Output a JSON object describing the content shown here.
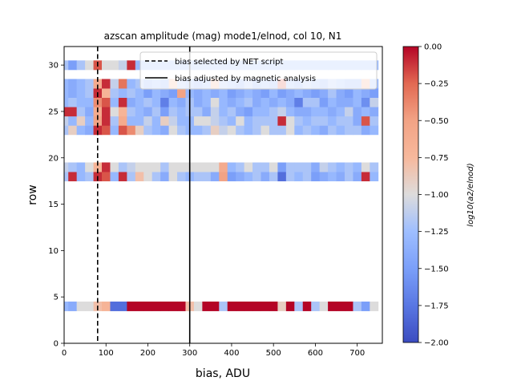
{
  "chart_data": {
    "type": "heatmap",
    "title": "azscan amplitude (mag) mode1/elnod, col 10, N1",
    "xlabel": "bias, ADU",
    "ylabel": "row",
    "xlim": [
      0,
      760
    ],
    "ylim": [
      0,
      32
    ],
    "x_ticks": [
      "0",
      "100",
      "200",
      "300",
      "400",
      "500",
      "600",
      "700"
    ],
    "y_ticks": [
      "0",
      "5",
      "10",
      "15",
      "20",
      "25",
      "30"
    ],
    "colorbar": {
      "label": "log10(a2/elnod)",
      "range": [
        -2.0,
        0.0
      ],
      "ticks": [
        "0.00",
        "−0.25",
        "−0.50",
        "−0.75",
        "−1.00",
        "−1.25",
        "−1.50",
        "−1.75",
        "−2.00"
      ],
      "colormap": "coolwarm"
    },
    "grid": false,
    "legend_position": "top-right",
    "vlines": [
      {
        "x": 80,
        "style": "dashed",
        "label": "bias selected by NET script"
      },
      {
        "x": 300,
        "style": "solid",
        "label": "bias adjusted by magnetic analysis"
      }
    ],
    "bias_values": [
      0,
      20,
      40,
      60,
      80,
      100,
      120,
      140,
      160,
      180,
      200,
      220,
      240,
      260,
      280,
      300,
      320,
      340,
      360,
      380,
      400,
      420,
      440,
      460,
      480,
      500,
      520,
      540,
      560,
      580,
      600,
      620,
      640,
      660,
      680,
      700,
      720,
      740
    ],
    "rows_shown": [
      4,
      18,
      19,
      23,
      24,
      25,
      26,
      27,
      28,
      30
    ],
    "z": {
      "4": [
        -1.3,
        -1.4,
        -1.0,
        -1.0,
        -0.8,
        -0.7,
        -1.8,
        -1.8,
        0,
        0,
        0,
        0,
        0,
        0,
        0,
        -0.8,
        -1.0,
        0,
        0,
        -1.2,
        0,
        0,
        0,
        0,
        0,
        0,
        -0.9,
        0,
        -1.2,
        0,
        -1.2,
        -1.0,
        0,
        0,
        0,
        -1.2,
        -1.5,
        -1.0
      ],
      "18": [
        -1.2,
        -0.1,
        -1.3,
        -1.2,
        -0.1,
        -0.2,
        -1.3,
        -0.1,
        -1.2,
        -0.8,
        -1.0,
        -1.2,
        -1.4,
        -1.0,
        -1.2,
        -1.3,
        -1.2,
        -1.2,
        -1.4,
        -0.5,
        -1.5,
        -1.4,
        -1.3,
        -1.2,
        -1.4,
        -1.2,
        -1.8,
        -1.2,
        -1.3,
        -1.2,
        -1.5,
        -1.4,
        -1.3,
        -1.4,
        -1.2,
        -1.4,
        -0.1,
        -1.3
      ],
      "19": [
        -1.1,
        -1.2,
        -1.3,
        -1.0,
        -0.7,
        -0.1,
        -1.0,
        -1.2,
        -1.1,
        -1.0,
        -1.0,
        -1.0,
        -1.2,
        -1.0,
        -1.0,
        -1.0,
        -1.0,
        -1.0,
        -1.0,
        -0.6,
        -1.3,
        -1.2,
        -1.0,
        -1.2,
        -1.2,
        -1.0,
        -1.5,
        -1.2,
        -1.2,
        -1.2,
        -1.4,
        -1.1,
        -1.2,
        -1.3,
        -1.2,
        -1.3,
        -1.0,
        -1.2
      ],
      "23": [
        -1.2,
        -0.9,
        -1.3,
        -1.4,
        -0.1,
        -0.2,
        -1.3,
        -0.2,
        -0.4,
        -0.9,
        -1.2,
        -1.3,
        -1.4,
        -1.0,
        -1.2,
        -1.3,
        -1.3,
        -1.2,
        -0.9,
        -1.1,
        -1.0,
        -1.2,
        -1.3,
        -1.2,
        -1.0,
        -1.2,
        -1.2,
        -1.0,
        -1.3,
        -1.2,
        -1.3,
        -1.4,
        -1.2,
        -1.3,
        -1.2,
        -1.2,
        -1.4,
        -1.3
      ],
      "24": [
        -1.1,
        -1.3,
        -0.9,
        -1.3,
        -0.5,
        -0.1,
        -1.2,
        -0.6,
        -1.3,
        -1.3,
        -1.1,
        -1.3,
        -0.9,
        -1.1,
        -1.3,
        -1.3,
        -1.0,
        -1.0,
        -1.1,
        -1.2,
        -1.3,
        -1.0,
        -1.3,
        -1.2,
        -1.2,
        -1.2,
        -0.1,
        -1.0,
        -1.2,
        -1.3,
        -1.2,
        -1.2,
        -1.3,
        -1.2,
        -1.2,
        -1.4,
        -0.2,
        -1.2
      ],
      "25": [
        -0.1,
        -0.1,
        -1.2,
        -1.4,
        -0.6,
        -0.1,
        -1.0,
        -0.7,
        -1.2,
        -1.3,
        -1.4,
        -1.2,
        -1.5,
        -1.2,
        -1.3,
        -1.2,
        -1.2,
        -1.4,
        -1.1,
        -1.3,
        -1.2,
        -1.4,
        -1.5,
        -1.3,
        -1.3,
        -1.2,
        -1.1,
        -1.3,
        -1.4,
        -1.4,
        -1.3,
        -1.3,
        -1.4,
        -1.3,
        -1.1,
        -1.4,
        -1.3,
        -1.4
      ],
      "26": [
        -1.3,
        -1.2,
        -1.3,
        -1.3,
        -0.4,
        -0.2,
        -1.3,
        -0.1,
        -1.4,
        -1.3,
        -1.2,
        -1.3,
        -1.7,
        -1.3,
        -1.4,
        -1.2,
        -1.4,
        -1.3,
        -1.0,
        -1.3,
        -1.4,
        -1.3,
        -1.2,
        -1.4,
        -1.3,
        -1.4,
        -1.3,
        -1.4,
        -1.7,
        -1.2,
        -1.2,
        -1.5,
        -1.3,
        -1.4,
        -1.4,
        -1.3,
        -1.6,
        -1.1
      ],
      "27": [
        -1.3,
        -1.4,
        -1.3,
        -1.2,
        -0.1,
        -0.7,
        -1.2,
        -1.3,
        -1.2,
        -1.3,
        -1.5,
        -1.3,
        -1.4,
        -1.5,
        -0.5,
        -1.3,
        -1.4,
        -1.3,
        -1.4,
        -1.3,
        -1.5,
        -1.4,
        -1.3,
        -1.4,
        -1.5,
        -1.3,
        -1.5,
        -1.4,
        -1.3,
        -1.4,
        -1.5,
        -1.4,
        -1.2,
        -1.4,
        -1.5,
        -1.3,
        -1.4,
        -1.5
      ],
      "28": [
        -1.3,
        -1.4,
        -1.3,
        -1.2,
        -0.6,
        -0.1,
        -1.1,
        -0.3,
        -1.3,
        -1.2,
        -1.4,
        -1.3,
        -1.4,
        -0.7,
        -1.2,
        -1.3,
        -1.4,
        -1.3,
        -0.7,
        -1.2,
        -1.3,
        -1.4,
        -1.2,
        -1.4,
        -1.3,
        -1.4,
        -0.2,
        -1.3,
        -1.4,
        -1.2,
        -1.3,
        -1.4,
        -1.2,
        -1.3,
        -1.4,
        -1.4,
        -0.6,
        -1.3
      ],
      "30": [
        -1.2,
        -1.5,
        -1.2,
        -1.0,
        -0.2,
        -1.0,
        -1.0,
        -1.1,
        -0.1,
        -1.3,
        -1.3,
        -1.3,
        -1.3,
        -1.3,
        -1.3,
        -1.3,
        -1.3,
        -1.3,
        -1.3,
        -1.3,
        -1.3,
        -1.3,
        -1.3,
        -1.3,
        -1.3,
        -1.3,
        -1.3,
        -1.3,
        -1.3,
        -1.3,
        -1.3,
        -1.3,
        -1.3,
        -1.3,
        -1.3,
        -1.3,
        -1.3,
        -1.3
      ]
    }
  }
}
